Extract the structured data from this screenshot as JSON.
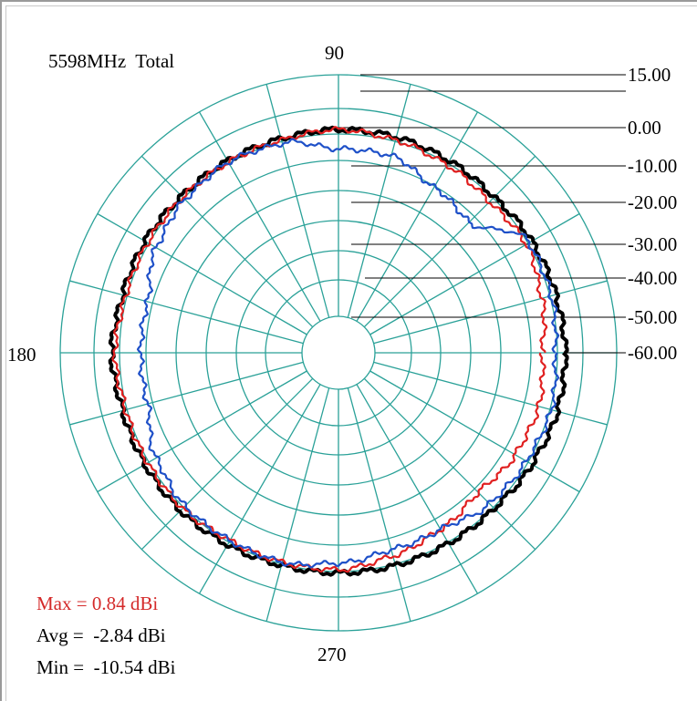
{
  "chart_data": {
    "type": "polar-line",
    "title": "5598MHz  Total",
    "angle_labels": [
      "90",
      "180",
      "270"
    ],
    "radial_labels": [
      "15.00",
      "0.00",
      "-10.00",
      "-20.00",
      "-30.00",
      "-40.00",
      "-50.00",
      "-60.00"
    ],
    "radial_range_dBi": [
      -60,
      15
    ],
    "grid": true,
    "colors": {
      "grid": "#2aa198",
      "series_total": "#000000",
      "series_red": "#e02020",
      "series_blue": "#1e50c8"
    },
    "stats": {
      "max": "Max = 0.84 dBi",
      "avg": "Avg =  -2.84 dBi",
      "min": "Min =  -10.54 dBi"
    },
    "series": [
      {
        "color": "#000000",
        "angle_deg": [
          0,
          15,
          30,
          45,
          60,
          75,
          90,
          105,
          120,
          135,
          150,
          165,
          180,
          195,
          210,
          225,
          240,
          255,
          270,
          285,
          300,
          315,
          330,
          345
        ],
        "values_dBi": [
          -1,
          -1.5,
          -2,
          -3,
          -2.5,
          -2,
          -2,
          -2.5,
          -2.5,
          -2.5,
          -2,
          -2,
          -1,
          -2,
          -2,
          -2,
          -2.5,
          -3,
          -3,
          -3,
          -3,
          -3,
          -2,
          -1
        ]
      },
      {
        "color": "#e02020",
        "angle_deg": [
          0,
          15,
          30,
          45,
          60,
          75,
          90,
          105,
          120,
          135,
          150,
          165,
          180,
          195,
          210,
          225,
          240,
          255,
          270,
          285,
          300,
          315,
          330,
          345
        ],
        "values_dBi": [
          -8,
          -6,
          -4,
          -5,
          -4,
          -3,
          -2,
          -3,
          -3,
          -3,
          -3,
          -3,
          -2,
          -3,
          -3,
          -3,
          -4,
          -4,
          -4,
          -6,
          -8,
          -10,
          -8,
          -7
        ]
      },
      {
        "color": "#1e50c8",
        "angle_deg": [
          0,
          15,
          30,
          45,
          60,
          75,
          90,
          105,
          120,
          135,
          150,
          165,
          180,
          195,
          210,
          225,
          240,
          255,
          270,
          285,
          300,
          315,
          330,
          345
        ],
        "values_dBi": [
          -4,
          -3,
          -3,
          -14,
          -12,
          -8,
          -8,
          -4,
          -3,
          -4,
          -6,
          -10,
          -10,
          -10,
          -6,
          -4,
          -4,
          -4,
          -6,
          -8,
          -8,
          -5,
          -4,
          -3
        ]
      }
    ]
  }
}
